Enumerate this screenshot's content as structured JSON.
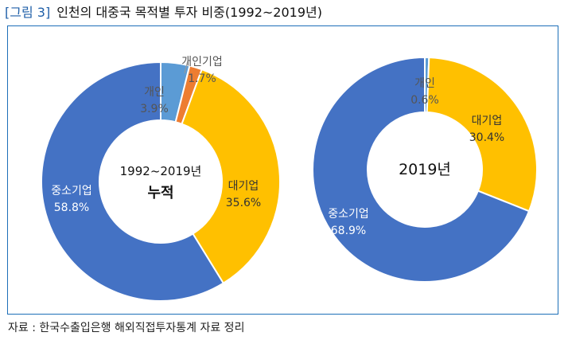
{
  "figure": {
    "label": "[그림 3]",
    "title": "인천의 대중국 목적별 투자 비중(1992~2019년)"
  },
  "source": "자료 : 한국수출입은행 해외직접투자통계 자료 정리",
  "chart_data": [
    {
      "type": "pie",
      "donut": true,
      "center_label_lines": [
        "1992~2019년",
        "누적"
      ],
      "slices": [
        {
          "label": "개인",
          "value": 3.9,
          "value_label": "3.9%",
          "color": "#5b9bd5"
        },
        {
          "label": "개인기업",
          "value": 1.7,
          "value_label": "1.7%",
          "color": "#ed7d31"
        },
        {
          "label": "대기업",
          "value": 35.6,
          "value_label": "35.6%",
          "color": "#ffc000"
        },
        {
          "label": "중소기업",
          "value": 58.8,
          "value_label": "58.8%",
          "color": "#4472c4"
        }
      ]
    },
    {
      "type": "pie",
      "donut": true,
      "center_label_lines": [
        "2019년"
      ],
      "slices": [
        {
          "label": "개인",
          "value": 0.6,
          "value_label": "0.6%",
          "color": "#5b9bd5"
        },
        {
          "label": "대기업",
          "value": 30.4,
          "value_label": "30.4%",
          "color": "#ffc000"
        },
        {
          "label": "중소기업",
          "value": 68.9,
          "value_label": "68.9%",
          "color": "#4472c4"
        }
      ]
    }
  ]
}
